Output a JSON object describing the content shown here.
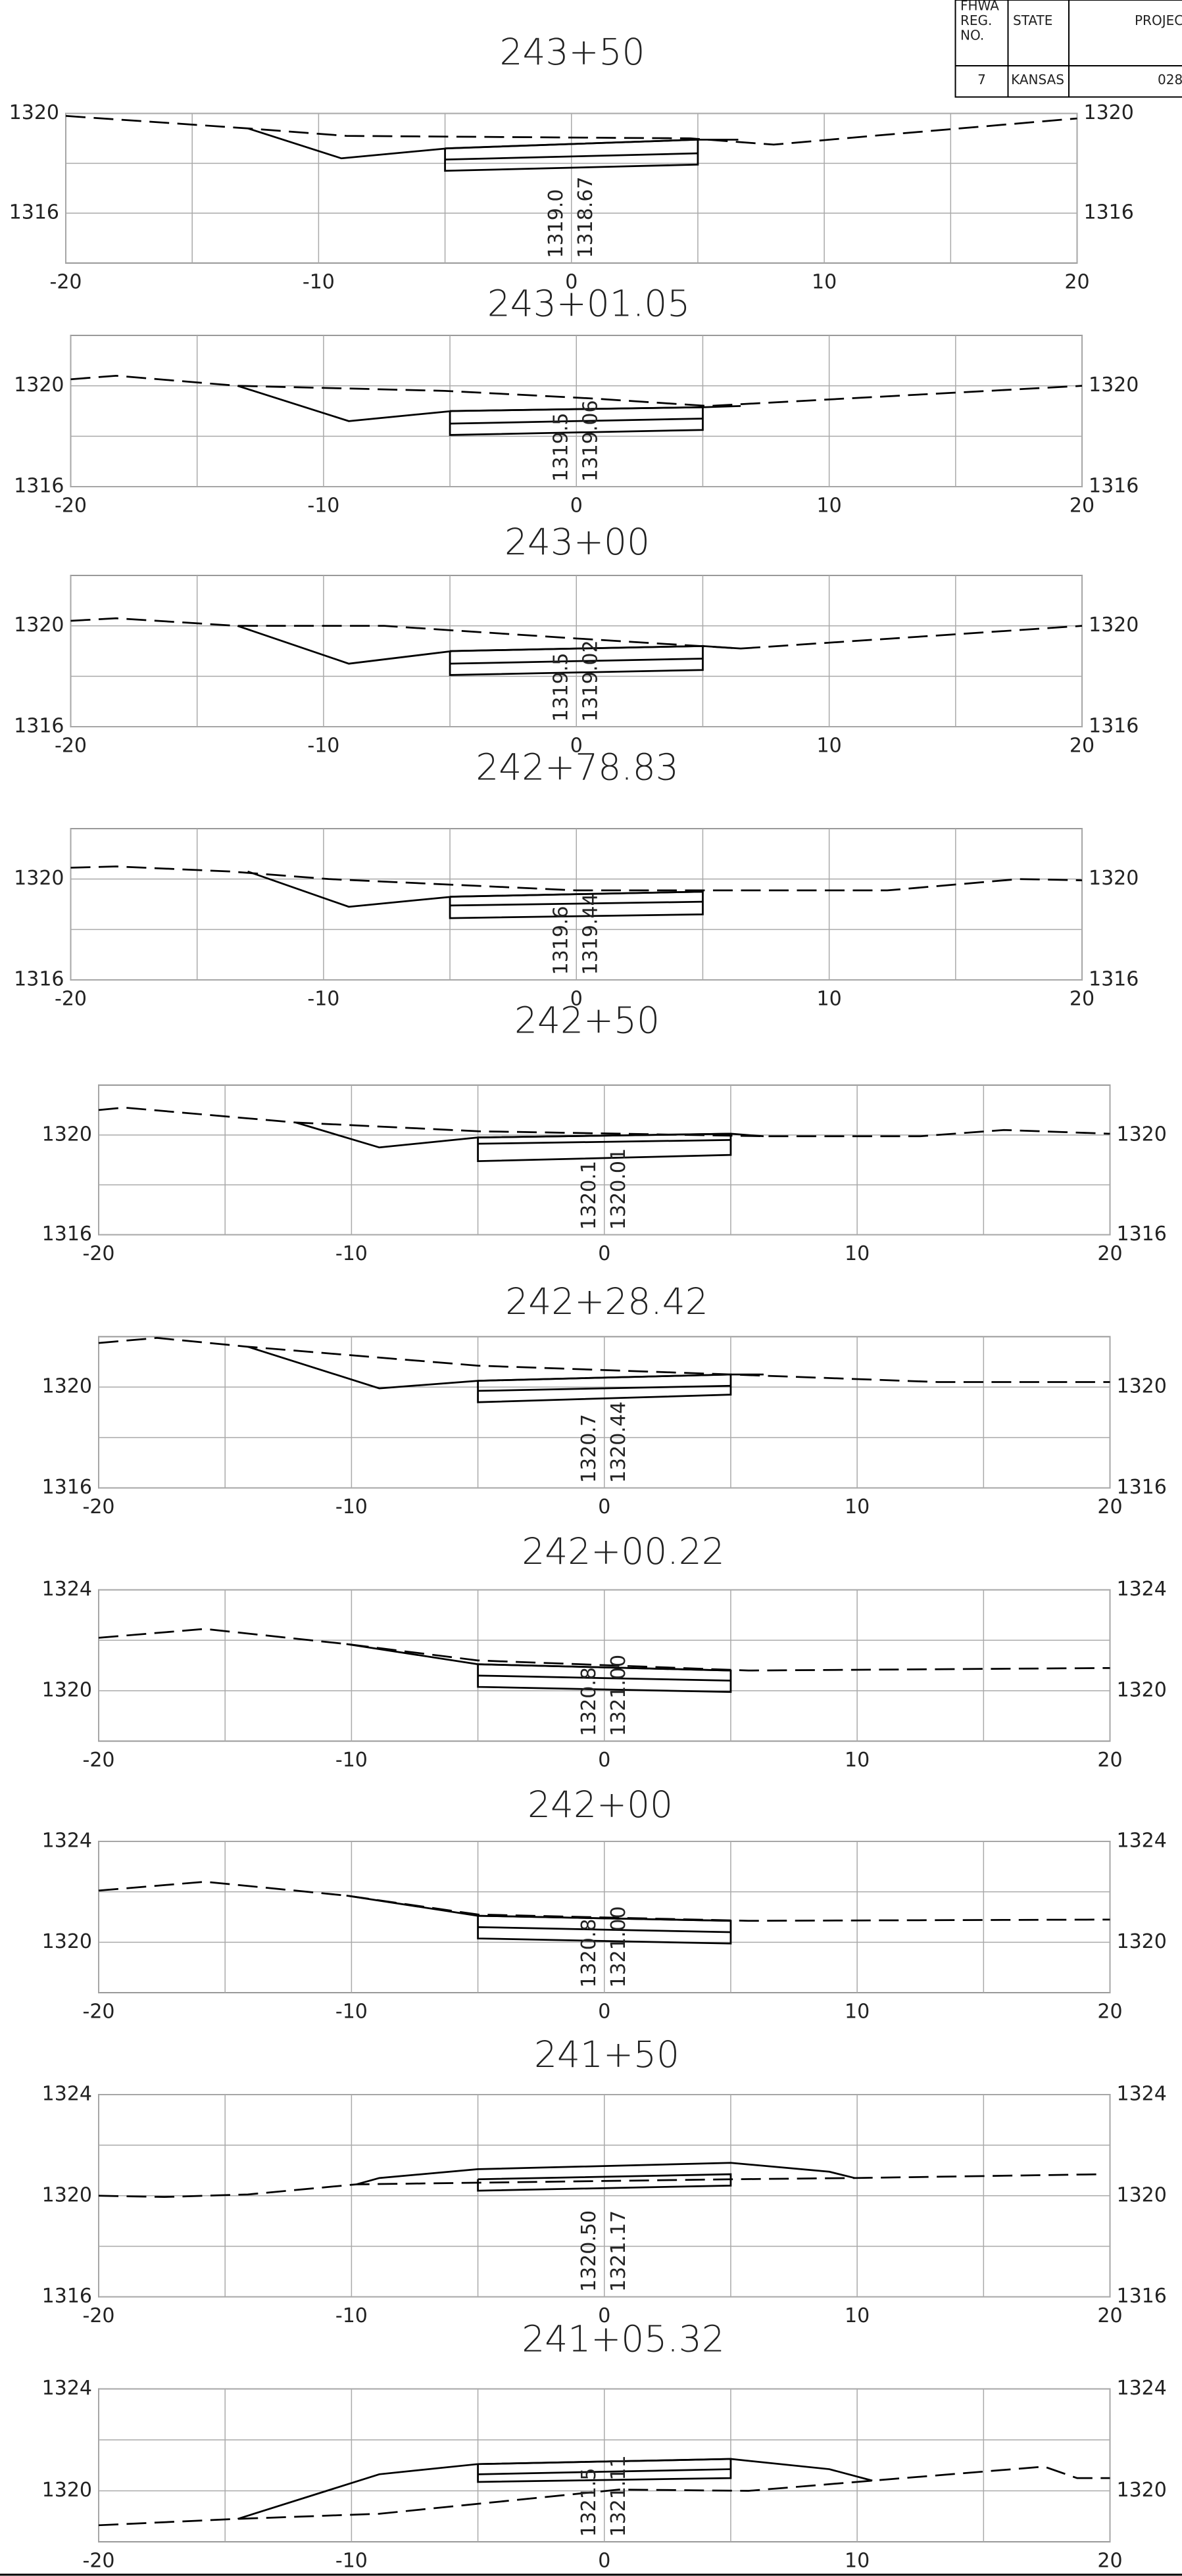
{
  "title_block": {
    "headers": [
      [
        "FHWA",
        "REG.",
        "NO."
      ],
      "STATE",
      "PROJEC"
    ],
    "values": [
      "7",
      "KANSAS",
      "028"
    ]
  },
  "chart_data": [
    {
      "type": "line",
      "title": "243+50",
      "xlim": [
        -20,
        20
      ],
      "ylim": [
        1314,
        1320
      ],
      "xticks": [
        -20,
        -10,
        0,
        10,
        20
      ],
      "yticks": [
        1316,
        1320
      ],
      "minor_xticks": [
        -15,
        -5,
        5,
        15
      ],
      "minor_yticks": [
        1318
      ],
      "series": [
        {
          "color": "#000000",
          "dash": true,
          "x": [
            -20,
            -12.8,
            -8.9,
            4.7,
            8.0,
            11.9,
            20
          ],
          "values": [
            1319.9,
            1319.4,
            1319.1,
            1319.0,
            1318.75,
            1319.1,
            1319.8
          ]
        },
        {
          "color": "#000000",
          "dash": false,
          "x": [
            -12.8,
            -9.1,
            -4.9,
            5.0,
            6.6
          ],
          "values": [
            1319.4,
            1318.2,
            1318.6,
            1318.95,
            1318.95
          ]
        },
        {
          "color": "#000000",
          "dash": false,
          "x": [
            -5,
            -5,
            5,
            5,
            -5
          ],
          "values": [
            1318.6,
            1317.7,
            1317.95,
            1318.95,
            1318.6
          ]
        },
        {
          "color": "#000000",
          "dash": false,
          "x": [
            -5,
            5
          ],
          "values": [
            1318.15,
            1318.4
          ]
        }
      ],
      "annotations": [
        "1319.0",
        "1318.67"
      ]
    },
    {
      "type": "line",
      "title": "243+01.05",
      "xlim": [
        -20,
        20
      ],
      "ylim": [
        1316,
        1322
      ],
      "xticks": [
        -20,
        -10,
        0,
        10,
        20
      ],
      "yticks": [
        1316,
        1320
      ],
      "minor_xticks": [
        -15,
        -5,
        5,
        15
      ],
      "minor_yticks": [
        1318
      ],
      "series": [
        {
          "color": "#000000",
          "dash": true,
          "x": [
            -20,
            -18.2,
            -13.4,
            -5.2,
            0.6,
            5.2,
            20
          ],
          "values": [
            1320.26,
            1320.4,
            1320.0,
            1319.8,
            1319.5,
            1319.2,
            1320.0
          ]
        },
        {
          "color": "#000000",
          "dash": false,
          "x": [
            -13.4,
            -9,
            -4.9,
            5,
            6.5
          ],
          "values": [
            1320.0,
            1318.6,
            1319.0,
            1319.15,
            1319.2
          ]
        },
        {
          "color": "#000000",
          "dash": false,
          "x": [
            -5,
            -5,
            5,
            5,
            -5
          ],
          "values": [
            1319.0,
            1318.05,
            1318.25,
            1319.15,
            1319.0
          ]
        },
        {
          "color": "#000000",
          "dash": false,
          "x": [
            -5,
            5
          ],
          "values": [
            1318.5,
            1318.7
          ]
        }
      ],
      "annotations": [
        "1319.5",
        "1319.06"
      ]
    },
    {
      "type": "line",
      "title": "243+00",
      "xlim": [
        -20,
        20
      ],
      "ylim": [
        1316,
        1322
      ],
      "xticks": [
        -20,
        -10,
        0,
        10,
        20
      ],
      "yticks": [
        1316,
        1320
      ],
      "minor_xticks": [
        -15,
        -5,
        5,
        15
      ],
      "minor_yticks": [
        1318
      ],
      "series": [
        {
          "color": "#000000",
          "dash": true,
          "x": [
            -20,
            -18.2,
            -13.4,
            -7.6,
            0,
            6.5,
            20
          ],
          "values": [
            1320.2,
            1320.3,
            1320.0,
            1320.0,
            1319.5,
            1319.1,
            1320.0
          ]
        },
        {
          "color": "#000000",
          "dash": false,
          "x": [
            -13.4,
            -9,
            -4.9,
            5,
            6.5
          ],
          "values": [
            1320.0,
            1318.5,
            1319.0,
            1319.2,
            1319.1
          ]
        },
        {
          "color": "#000000",
          "dash": false,
          "x": [
            -5,
            -5,
            5,
            5,
            -5
          ],
          "values": [
            1319.0,
            1318.05,
            1318.25,
            1319.2,
            1319.0
          ]
        },
        {
          "color": "#000000",
          "dash": false,
          "x": [
            -5,
            5
          ],
          "values": [
            1318.5,
            1318.7
          ]
        }
      ],
      "annotations": [
        "1319.5",
        "1319.02"
      ]
    },
    {
      "type": "line",
      "title": "242+78.83",
      "xlim": [
        -20,
        20
      ],
      "ylim": [
        1316,
        1322
      ],
      "xticks": [
        -20,
        -10,
        0,
        10,
        20
      ],
      "yticks": [
        1316,
        1320
      ],
      "minor_xticks": [
        -15,
        -5,
        5,
        15
      ],
      "minor_yticks": [
        1318
      ],
      "series": [
        {
          "color": "#000000",
          "dash": true,
          "x": [
            -20,
            -18.2,
            -13.7,
            -9.8,
            0,
            12.3,
            17.5,
            20
          ],
          "values": [
            1320.45,
            1320.5,
            1320.3,
            1320.0,
            1319.55,
            1319.55,
            1320.0,
            1319.95
          ]
        },
        {
          "color": "#000000",
          "dash": false,
          "x": [
            -13,
            -9,
            -4.9,
            5
          ],
          "values": [
            1320.3,
            1318.9,
            1319.3,
            1319.5
          ]
        },
        {
          "color": "#000000",
          "dash": false,
          "x": [
            -5,
            -5,
            5,
            5,
            -5
          ],
          "values": [
            1319.3,
            1318.45,
            1318.6,
            1319.5,
            1319.3
          ]
        },
        {
          "color": "#000000",
          "dash": false,
          "x": [
            -5,
            5
          ],
          "values": [
            1318.95,
            1319.1
          ]
        }
      ],
      "annotations": [
        "1319.6",
        "1319.44"
      ]
    },
    {
      "type": "line",
      "title": "242+50",
      "xlim": [
        -20,
        20
      ],
      "ylim": [
        1316,
        1322
      ],
      "xticks": [
        -20,
        -10,
        0,
        10,
        20
      ],
      "yticks": [
        1316,
        1320
      ],
      "minor_xticks": [
        -15,
        -5,
        5,
        15
      ],
      "minor_yticks": [
        1318
      ],
      "series": [
        {
          "color": "#000000",
          "dash": true,
          "x": [
            -20,
            -19,
            -12.2,
            -5,
            6.3,
            12.5,
            15.8,
            20
          ],
          "values": [
            1321.0,
            1321.1,
            1320.5,
            1320.15,
            1319.95,
            1319.95,
            1320.2,
            1320.05
          ]
        },
        {
          "color": "#000000",
          "dash": false,
          "x": [
            -12.2,
            -8.9,
            -5,
            5,
            6.3
          ],
          "values": [
            1320.5,
            1319.5,
            1319.9,
            1320.05,
            1319.95
          ]
        },
        {
          "color": "#000000",
          "dash": false,
          "x": [
            -5,
            -5,
            5,
            5,
            -5
          ],
          "values": [
            1319.9,
            1318.95,
            1319.2,
            1320.05,
            1319.9
          ]
        },
        {
          "color": "#000000",
          "dash": false,
          "x": [
            -5,
            5
          ],
          "values": [
            1319.65,
            1319.8
          ]
        }
      ],
      "annotations": [
        "1320.1",
        "1320.01"
      ]
    },
    {
      "type": "line",
      "title": "242+28.42",
      "xlim": [
        -20,
        20
      ],
      "ylim": [
        1316,
        1322
      ],
      "xticks": [
        -20,
        -10,
        0,
        10,
        20
      ],
      "yticks": [
        1316,
        1320
      ],
      "minor_xticks": [
        -15,
        -5,
        5,
        15
      ],
      "minor_yticks": [
        1318
      ],
      "series": [
        {
          "color": "#000000",
          "dash": true,
          "x": [
            -20,
            -17.7,
            -14.1,
            -5,
            5,
            13.2,
            17.1,
            20
          ],
          "values": [
            1321.75,
            1321.95,
            1321.6,
            1320.85,
            1320.5,
            1320.2,
            1320.2,
            1320.2
          ]
        },
        {
          "color": "#000000",
          "dash": false,
          "x": [
            -14.1,
            -8.9,
            -5,
            5,
            6.3
          ],
          "values": [
            1321.6,
            1319.95,
            1320.25,
            1320.5,
            1320.5
          ]
        },
        {
          "color": "#000000",
          "dash": false,
          "x": [
            -5,
            -5,
            5,
            5,
            -5
          ],
          "values": [
            1320.25,
            1319.4,
            1319.7,
            1320.5,
            1320.25
          ]
        },
        {
          "color": "#000000",
          "dash": false,
          "x": [
            -5,
            5
          ],
          "values": [
            1319.85,
            1320.05
          ]
        }
      ],
      "annotations": [
        "1320.7",
        "1320.44"
      ]
    },
    {
      "type": "line",
      "title": "242+00.22",
      "xlim": [
        -20,
        20
      ],
      "ylim": [
        1318,
        1324
      ],
      "xticks": [
        -20,
        -10,
        0,
        10,
        20
      ],
      "yticks": [
        1320,
        1324
      ],
      "minor_xticks": [
        -15,
        -5,
        5,
        15
      ],
      "minor_yticks": [
        1322
      ],
      "series": [
        {
          "color": "#000000",
          "dash": true,
          "x": [
            -20,
            -15.8,
            -10.2,
            -5,
            5.7,
            20
          ],
          "values": [
            1322.1,
            1322.45,
            1321.85,
            1321.2,
            1320.8,
            1320.9
          ]
        },
        {
          "color": "#000000",
          "dash": false,
          "x": [
            -10.2,
            -5,
            5
          ],
          "values": [
            1321.85,
            1321.05,
            1320.8
          ]
        },
        {
          "color": "#000000",
          "dash": false,
          "x": [
            -5,
            -5,
            5,
            5,
            -5
          ],
          "values": [
            1321.05,
            1320.15,
            1319.95,
            1320.8,
            1321.05
          ]
        },
        {
          "color": "#000000",
          "dash": false,
          "x": [
            -5,
            5
          ],
          "values": [
            1320.6,
            1320.4
          ]
        }
      ],
      "annotations": [
        "1320.8",
        "1321.00"
      ]
    },
    {
      "type": "line",
      "title": "242+00",
      "xlim": [
        -20,
        20
      ],
      "ylim": [
        1318,
        1324
      ],
      "xticks": [
        -20,
        -10,
        0,
        10,
        20
      ],
      "yticks": [
        1320,
        1324
      ],
      "minor_xticks": [
        -15,
        -5,
        5,
        15
      ],
      "minor_yticks": [
        1322
      ],
      "series": [
        {
          "color": "#000000",
          "dash": true,
          "x": [
            -20,
            -15.8,
            -10.2,
            -5,
            5.7,
            20
          ],
          "values": [
            1322.05,
            1322.4,
            1321.85,
            1321.1,
            1320.85,
            1320.9
          ]
        },
        {
          "color": "#000000",
          "dash": false,
          "x": [
            -10.2,
            -5,
            5
          ],
          "values": [
            1321.85,
            1321.05,
            1320.85
          ]
        },
        {
          "color": "#000000",
          "dash": false,
          "x": [
            -5,
            -5,
            5,
            5,
            -5
          ],
          "values": [
            1321.05,
            1320.15,
            1319.95,
            1320.85,
            1321.05
          ]
        },
        {
          "color": "#000000",
          "dash": false,
          "x": [
            -5,
            5
          ],
          "values": [
            1320.6,
            1320.4
          ]
        }
      ],
      "annotations": [
        "1320.8",
        "1321.00"
      ]
    },
    {
      "type": "line",
      "title": "241+50",
      "xlim": [
        -20,
        20
      ],
      "ylim": [
        1316,
        1324
      ],
      "xticks": [
        -20,
        -10,
        0,
        10,
        20
      ],
      "yticks": [
        1316,
        1320,
        1324
      ],
      "minor_xticks": [
        -15,
        -5,
        5,
        15
      ],
      "minor_yticks": [
        1318,
        1322
      ],
      "series": [
        {
          "color": "#000000",
          "dash": true,
          "x": [
            -20,
            -17.4,
            -14.1,
            -9.8,
            5,
            9.9,
            19.7
          ],
          "values": [
            1320.0,
            1319.95,
            1320.05,
            1320.45,
            1320.65,
            1320.7,
            1320.85
          ]
        },
        {
          "color": "#000000",
          "dash": false,
          "x": [
            -9.8,
            -8.9,
            -5,
            5,
            8.9,
            9.9
          ],
          "values": [
            1320.45,
            1320.7,
            1321.05,
            1321.3,
            1320.95,
            1320.7
          ]
        },
        {
          "color": "#000000",
          "dash": false,
          "x": [
            -5,
            -5,
            5,
            5,
            -5
          ],
          "values": [
            1320.65,
            1320.2,
            1320.4,
            1320.85,
            1320.65
          ]
        }
      ],
      "annotations": [
        "1320.50",
        "1321.17"
      ]
    },
    {
      "type": "line",
      "title": "241+05.32",
      "xlim": [
        -20,
        20
      ],
      "ylim": [
        1318,
        1324
      ],
      "xticks": [
        -20,
        -10,
        0,
        10,
        20
      ],
      "yticks": [
        1320,
        1324
      ],
      "minor_xticks": [
        -15,
        -5,
        5,
        15
      ],
      "minor_yticks": [
        1322
      ],
      "series": [
        {
          "color": "#000000",
          "dash": true,
          "x": [
            -20,
            -14.5,
            -8.9,
            0.6,
            5.7,
            10.6,
            17.4,
            18.7,
            20
          ],
          "values": [
            1318.65,
            1318.9,
            1319.1,
            1320.05,
            1320.0,
            1320.4,
            1320.95,
            1320.5,
            1320.5
          ]
        },
        {
          "color": "#000000",
          "dash": false,
          "x": [
            -14.5,
            -8.9,
            -5,
            5,
            8.9,
            10.6
          ],
          "values": [
            1318.9,
            1320.65,
            1321.05,
            1321.25,
            1320.85,
            1320.4
          ]
        },
        {
          "color": "#000000",
          "dash": false,
          "x": [
            -5,
            -5,
            5,
            5,
            -5
          ],
          "values": [
            1321.05,
            1320.35,
            1320.5,
            1321.25,
            1321.05
          ]
        },
        {
          "color": "#000000",
          "dash": false,
          "x": [
            -5,
            5
          ],
          "values": [
            1320.65,
            1320.85
          ]
        }
      ],
      "annotations": [
        "1321.5",
        "1321.11"
      ]
    }
  ]
}
